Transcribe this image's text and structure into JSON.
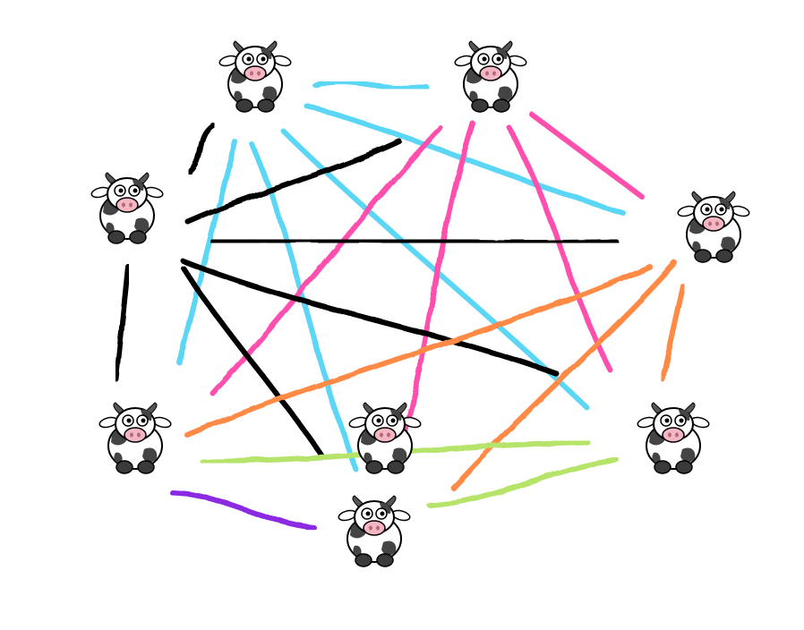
{
  "diagram": {
    "nodes": [
      {
        "id": "cow-1",
        "icon": "cow-icon"
      },
      {
        "id": "cow-2",
        "icon": "cow-icon"
      },
      {
        "id": "cow-3",
        "icon": "cow-icon"
      },
      {
        "id": "cow-4",
        "icon": "cow-icon"
      },
      {
        "id": "cow-5",
        "icon": "cow-icon"
      },
      {
        "id": "cow-6",
        "icon": "cow-icon"
      },
      {
        "id": "cow-7",
        "icon": "cow-icon"
      },
      {
        "id": "cow-8",
        "icon": "cow-icon"
      }
    ],
    "edges": [
      {
        "from": "cow-1",
        "to": "cow-2",
        "color": "#5bd6f5"
      },
      {
        "from": "cow-1",
        "to": "cow-4",
        "color": "#5bd6f5"
      },
      {
        "from": "cow-1",
        "to": "cow-5",
        "color": "#5bd6f5"
      },
      {
        "from": "cow-1",
        "to": "cow-7",
        "color": "#5bd6f5"
      },
      {
        "from": "cow-1",
        "to": "cow-3",
        "color": "#000000"
      },
      {
        "from": "cow-1",
        "to": "cow-6",
        "color": "#5bd6f5"
      },
      {
        "from": "cow-2",
        "to": "cow-3",
        "color": "#000000"
      },
      {
        "from": "cow-2",
        "to": "cow-4",
        "color": "#ff4fae"
      },
      {
        "from": "cow-2",
        "to": "cow-5",
        "color": "#ff4fae"
      },
      {
        "from": "cow-2",
        "to": "cow-6",
        "color": "#ff4fae"
      },
      {
        "from": "cow-2",
        "to": "cow-8",
        "color": "#ff4fae"
      },
      {
        "from": "cow-3",
        "to": "cow-4",
        "color": "#000000"
      },
      {
        "from": "cow-3",
        "to": "cow-5",
        "color": "#000000"
      },
      {
        "from": "cow-3",
        "to": "cow-8",
        "color": "#000000"
      },
      {
        "from": "cow-3",
        "to": "cow-6",
        "color": "#000000"
      },
      {
        "from": "cow-4",
        "to": "cow-5",
        "color": "#ff8a45"
      },
      {
        "from": "cow-4",
        "to": "cow-6",
        "color": "#ff8a45"
      },
      {
        "from": "cow-4",
        "to": "cow-7",
        "color": "#ff8a45"
      },
      {
        "from": "cow-5",
        "to": "cow-8",
        "color": "#b6e36a"
      },
      {
        "from": "cow-5",
        "to": "cow-6",
        "color": "#b6e36a"
      },
      {
        "from": "cow-6",
        "to": "cow-7",
        "color": "#8b2be2"
      }
    ]
  }
}
